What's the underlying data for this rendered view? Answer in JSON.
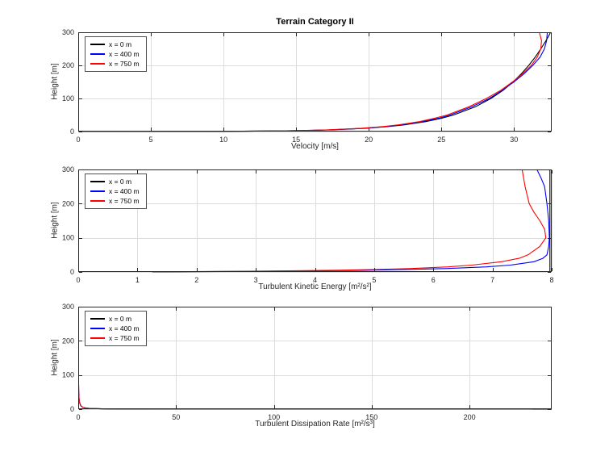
{
  "figure": {
    "title": "Terrain Category II",
    "background": "#ffffff"
  },
  "colors": {
    "series_black": "#000000",
    "series_blue": "#0000ff",
    "series_red": "#ff0000",
    "grid": "#dcdcdc",
    "axis": "#262626"
  },
  "chart_data": [
    {
      "type": "line",
      "title": "Terrain Category II",
      "xlabel": "Velocity [m/s]",
      "ylabel": "Height [m]",
      "xlim": [
        0,
        32.6
      ],
      "ylim": [
        0,
        300
      ],
      "xticks": [
        0,
        5,
        10,
        15,
        20,
        25,
        30
      ],
      "yticks": [
        0,
        100,
        200,
        300
      ],
      "grid": true,
      "legend_position": "top-left",
      "series": [
        {
          "name": "x = 0 m",
          "color": "#000000",
          "points": [
            [
              0,
              0
            ],
            [
              8.97,
              0.5
            ],
            [
              11.38,
              1
            ],
            [
              13.89,
              2
            ],
            [
              15.37,
              3
            ],
            [
              17.27,
              5
            ],
            [
              18.51,
              7
            ],
            [
              19.84,
              10
            ],
            [
              21.34,
              15
            ],
            [
              22.41,
              20
            ],
            [
              23.93,
              30
            ],
            [
              25.0,
              40
            ],
            [
              25.84,
              50
            ],
            [
              27.35,
              75
            ],
            [
              28.42,
              100
            ],
            [
              29.26,
              125
            ],
            [
              29.94,
              150
            ],
            [
              30.52,
              175
            ],
            [
              31.02,
              200
            ],
            [
              31.46,
              225
            ],
            [
              31.85,
              250
            ],
            [
              32.21,
              275
            ],
            [
              32.53,
              300
            ]
          ]
        },
        {
          "name": "x = 400 m",
          "color": "#0000ff",
          "points": [
            [
              0,
              0
            ],
            [
              8.95,
              0.5
            ],
            [
              11.35,
              1
            ],
            [
              13.85,
              2
            ],
            [
              15.3,
              3
            ],
            [
              17.15,
              5
            ],
            [
              18.35,
              7
            ],
            [
              19.7,
              10
            ],
            [
              21.2,
              15
            ],
            [
              22.2,
              20
            ],
            [
              23.7,
              30
            ],
            [
              24.8,
              40
            ],
            [
              25.6,
              50
            ],
            [
              27.1,
              75
            ],
            [
              28.3,
              100
            ],
            [
              29.2,
              125
            ],
            [
              30.0,
              150
            ],
            [
              30.7,
              175
            ],
            [
              31.3,
              200
            ],
            [
              31.8,
              225
            ],
            [
              32.1,
              250
            ],
            [
              32.25,
              275
            ],
            [
              32.3,
              300
            ]
          ]
        },
        {
          "name": "x = 750 m",
          "color": "#ff0000",
          "points": [
            [
              0,
              0
            ],
            [
              8.9,
              0.5
            ],
            [
              11.3,
              1
            ],
            [
              13.8,
              2
            ],
            [
              15.2,
              3
            ],
            [
              17.0,
              5
            ],
            [
              18.2,
              7
            ],
            [
              19.5,
              10
            ],
            [
              21.0,
              15
            ],
            [
              22.0,
              20
            ],
            [
              23.5,
              30
            ],
            [
              24.5,
              40
            ],
            [
              25.4,
              50
            ],
            [
              26.9,
              75
            ],
            [
              28.1,
              100
            ],
            [
              29.1,
              125
            ],
            [
              29.9,
              150
            ],
            [
              30.6,
              175
            ],
            [
              31.2,
              200
            ],
            [
              31.6,
              225
            ],
            [
              31.85,
              250
            ],
            [
              31.9,
              275
            ],
            [
              31.75,
              300
            ]
          ]
        }
      ]
    },
    {
      "type": "line",
      "title": "",
      "xlabel": "Turbulent Kinetic Energy [m²/s²]",
      "ylabel": "Height [m]",
      "xlim": [
        0,
        8
      ],
      "ylim": [
        0,
        300
      ],
      "xticks": [
        0,
        1,
        2,
        3,
        4,
        5,
        6,
        7,
        8
      ],
      "yticks": [
        0,
        100,
        200,
        300
      ],
      "grid": true,
      "legend_position": "top-left",
      "series": [
        {
          "name": "x = 0 m",
          "color": "#000000",
          "points": [
            [
              7.97,
              0
            ],
            [
              7.97,
              300
            ]
          ]
        },
        {
          "name": "x = 400 m",
          "color": "#0000ff",
          "points": [
            [
              1.3,
              0
            ],
            [
              2.1,
              1
            ],
            [
              3.0,
              2
            ],
            [
              3.8,
              3
            ],
            [
              4.8,
              5
            ],
            [
              5.5,
              7
            ],
            [
              6.2,
              10
            ],
            [
              6.9,
              15
            ],
            [
              7.3,
              20
            ],
            [
              7.7,
              30
            ],
            [
              7.85,
              40
            ],
            [
              7.92,
              50
            ],
            [
              7.95,
              75
            ],
            [
              7.96,
              100
            ],
            [
              7.95,
              150
            ],
            [
              7.92,
              200
            ],
            [
              7.88,
              250
            ],
            [
              7.82,
              275
            ],
            [
              7.75,
              300
            ]
          ]
        },
        {
          "name": "x = 750 m",
          "color": "#ff0000",
          "points": [
            [
              1.25,
              0
            ],
            [
              1.9,
              1
            ],
            [
              2.7,
              2
            ],
            [
              3.4,
              3
            ],
            [
              4.3,
              5
            ],
            [
              4.95,
              7
            ],
            [
              5.6,
              10
            ],
            [
              6.25,
              15
            ],
            [
              6.65,
              20
            ],
            [
              7.15,
              30
            ],
            [
              7.45,
              40
            ],
            [
              7.6,
              50
            ],
            [
              7.8,
              75
            ],
            [
              7.9,
              100
            ],
            [
              7.88,
              125
            ],
            [
              7.8,
              150
            ],
            [
              7.7,
              175
            ],
            [
              7.62,
              200
            ],
            [
              7.55,
              250
            ],
            [
              7.5,
              300
            ]
          ]
        }
      ]
    },
    {
      "type": "line",
      "title": "",
      "xlabel": "Turbulent Dissipation Rate [m²/s³]",
      "ylabel": "Height [m]",
      "xlim": [
        0,
        242
      ],
      "ylim": [
        0,
        300
      ],
      "xticks": [
        0,
        50,
        100,
        150,
        200
      ],
      "yticks": [
        0,
        100,
        200,
        300
      ],
      "grid": true,
      "legend_position": "top-left",
      "series": [
        {
          "name": "x = 0 m",
          "color": "#000000",
          "points": [
            [
              242,
              0
            ],
            [
              120,
              0.1
            ],
            [
              60,
              0.2
            ],
            [
              24,
              0.5
            ],
            [
              12.4,
              1
            ],
            [
              6.3,
              2
            ],
            [
              4.2,
              3
            ],
            [
              2.6,
              5
            ],
            [
              1.3,
              10
            ],
            [
              0.65,
              20
            ],
            [
              0.45,
              30
            ],
            [
              0.26,
              50
            ],
            [
              0.13,
              100
            ],
            [
              0.07,
              200
            ],
            [
              0.05,
              300
            ]
          ]
        },
        {
          "name": "x = 400 m",
          "color": "#0000ff",
          "points": [
            [
              240,
              0
            ],
            [
              118,
              0.1
            ],
            [
              59,
              0.2
            ],
            [
              23.6,
              0.5
            ],
            [
              12.2,
              1
            ],
            [
              6.2,
              2
            ],
            [
              4.1,
              3
            ],
            [
              2.5,
              5
            ],
            [
              1.3,
              10
            ],
            [
              0.6,
              20
            ],
            [
              0.4,
              30
            ],
            [
              0.25,
              50
            ],
            [
              0.12,
              100
            ],
            [
              0.07,
              200
            ],
            [
              0.05,
              300
            ]
          ]
        },
        {
          "name": "x = 750 m",
          "color": "#ff0000",
          "points": [
            [
              232,
              0
            ],
            [
              114,
              0.1
            ],
            [
              57,
              0.2
            ],
            [
              22.8,
              0.5
            ],
            [
              11.8,
              1
            ],
            [
              6.0,
              2
            ],
            [
              4.0,
              3
            ],
            [
              2.4,
              5
            ],
            [
              1.2,
              10
            ],
            [
              0.6,
              20
            ],
            [
              0.4,
              30
            ],
            [
              0.24,
              50
            ],
            [
              0.12,
              100
            ],
            [
              0.07,
              200
            ],
            [
              0.05,
              300
            ]
          ]
        }
      ]
    }
  ]
}
